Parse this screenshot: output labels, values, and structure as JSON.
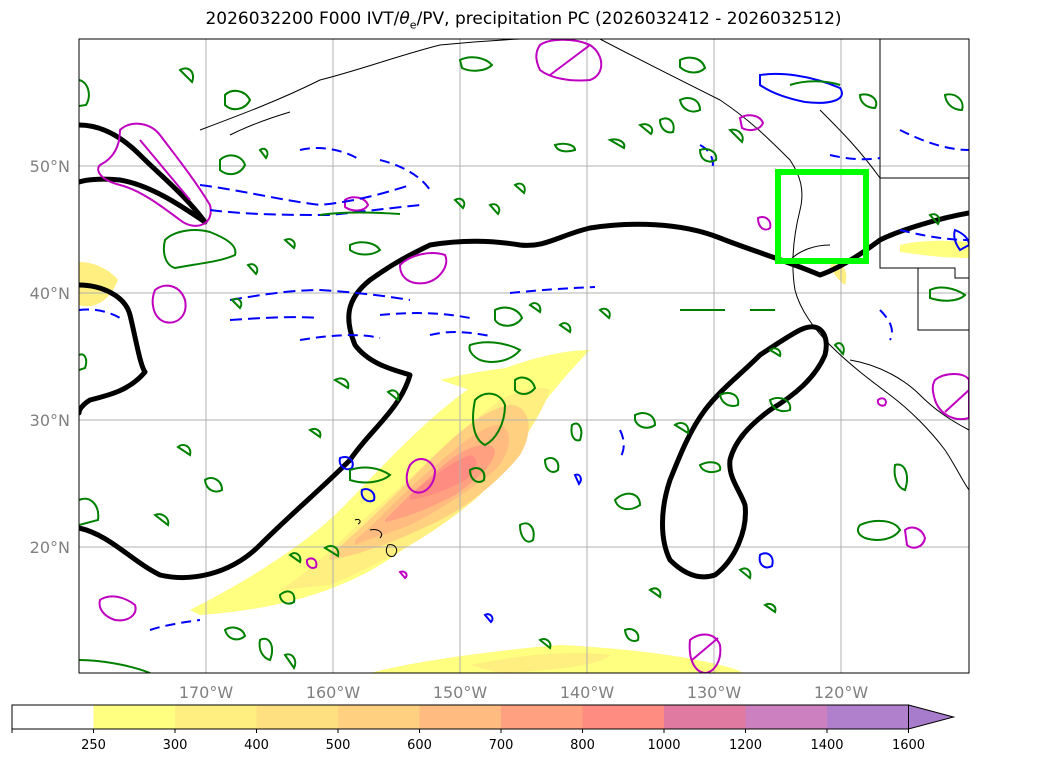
{
  "title": {
    "prefix": "2026032200 F000 IVT/",
    "theta_symbol": "θ",
    "theta_subscript": "e",
    "suffix": "/PV, precipitation PC (2026032412 - 2026032512)"
  },
  "map": {
    "lon_range": [
      -180,
      -110
    ],
    "lat_range": [
      10,
      60
    ],
    "grid": true,
    "lat_ticks": [
      {
        "value": 50,
        "label": "50°N"
      },
      {
        "value": 40,
        "label": "40°N"
      },
      {
        "value": 30,
        "label": "30°N"
      },
      {
        "value": 20,
        "label": "20°N"
      }
    ],
    "lon_ticks": [
      {
        "value": -170,
        "label": "170°W"
      },
      {
        "value": -160,
        "label": "160°W"
      },
      {
        "value": -150,
        "label": "150°W"
      },
      {
        "value": -140,
        "label": "140°W"
      },
      {
        "value": -130,
        "label": "130°W"
      },
      {
        "value": -120,
        "label": "120°W"
      }
    ],
    "highlight_box": {
      "color": "#00ff00",
      "lon": [
        -125,
        -118
      ],
      "lat": [
        42.5,
        49.5
      ]
    },
    "contour_colors": {
      "theta_e": "#000000",
      "pv": "#008000",
      "positive": "#c000c0",
      "negative": "#0000ff"
    }
  },
  "colorbar": {
    "levels": [
      "250",
      "300",
      "400",
      "500",
      "600",
      "700",
      "800",
      "1000",
      "1200",
      "1400",
      "1600"
    ],
    "colors": [
      "#ffffff",
      "#ffff80",
      "#ffee80",
      "#ffe080",
      "#ffd080",
      "#ffbb80",
      "#ffa080",
      "#ff8c80",
      "#e07aa0",
      "#cc80c0",
      "#b080cc"
    ],
    "extend": "max",
    "extend_color": "#a87ccc"
  }
}
